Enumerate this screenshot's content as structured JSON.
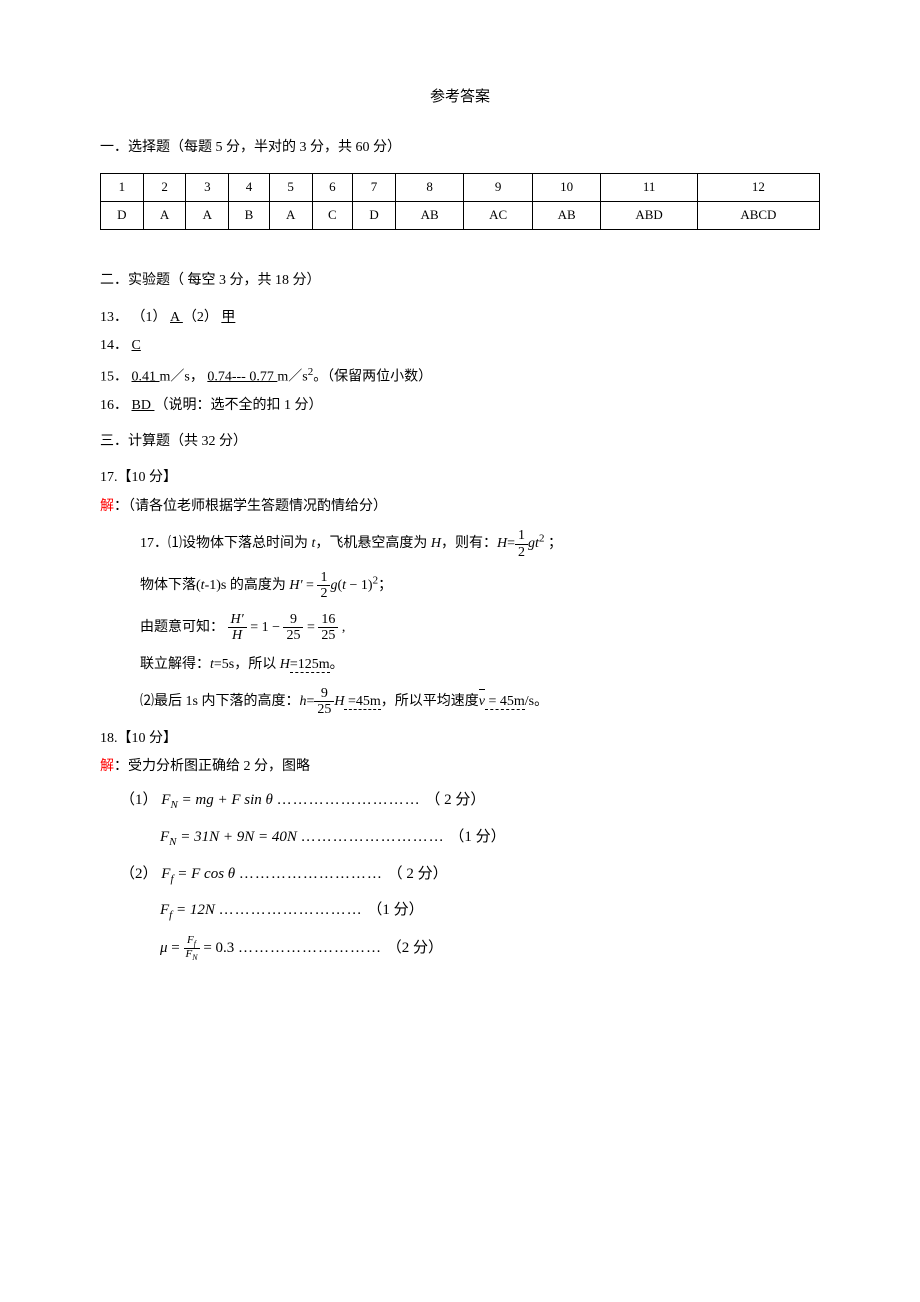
{
  "title": "参考答案",
  "section1": {
    "heading": "一．选择题（每题 5 分，半对的 3 分，共 60 分）",
    "table": {
      "numbers": [
        "1",
        "2",
        "3",
        "4",
        "5",
        "6",
        "7",
        "8",
        "9",
        "10",
        "11",
        "12"
      ],
      "answers": [
        "D",
        "A",
        "A",
        "B",
        "A",
        "C",
        "D",
        "AB",
        "AC",
        "AB",
        "ABD",
        "ABCD"
      ]
    }
  },
  "section2": {
    "heading": "二．实验题（ 每空 3 分，共 18 分）",
    "q13": {
      "label": "13．",
      "part1_label": "（1）",
      "part1_answer": "  A  ",
      "part2_label": "（2）",
      "part2_answer": "    甲  "
    },
    "q14": {
      "label": "14．",
      "answer": "  C  "
    },
    "q15": {
      "label": "15．",
      "answer1": " 0.41 ",
      "unit1": " m／s，",
      "answer2": " 0.74--- 0.77  ",
      "unit2": " m／s",
      "suffix": "。（保留两位小数）"
    },
    "q16": {
      "label": "16．",
      "answer": "  BD   ",
      "note": "（说明：选不全的扣 1 分）"
    }
  },
  "section3": {
    "heading": "三．计算题（共 32 分）",
    "q17": {
      "label": "17.【10 分】",
      "solution_prefix": "解",
      "solution_note": "：（请各位老师根据学生答题情况酌情给分）",
      "line1_prefix": "17．⑴设物体下落总时间为 ",
      "line1_mid": "，飞机悬空高度为 ",
      "line1_after": "，则有：",
      "line2_prefix": "物体下落(",
      "line2_mid": "-1)s 的高度为 ",
      "line3_prefix": "由题意可知：",
      "line4": "联立解得：",
      "line4_t": "t",
      "line4_tval": "=5s，所以 ",
      "line4_H": "H",
      "line4_Hval": "=125m",
      "line4_end": "。",
      "line5_prefix": "⑵最后 1s 内下落的高度：",
      "line5_h": "h",
      "line5_mid": " =45m",
      "line5_after": "，所以平均速度",
      "line5_v": " = 45m",
      "line5_end": "/s。"
    },
    "q18": {
      "label": "18.【10 分】",
      "solution_prefix": "解",
      "solution_line": "：受力分析图正确给 2 分，图略",
      "part1_label": "（1）",
      "eq1_lhs": "F",
      "eq1_sub": "N",
      "eq1_rhs": " = mg + F sin θ",
      "eq1_pts": "（ 2 分）",
      "eq2_rhs": " = 31N + 9N = 40N",
      "eq2_pts": "（1 分）",
      "part2_label": "（2）",
      "eq3_lhs": "F",
      "eq3_sub": "f",
      "eq3_rhs": " = F cos θ",
      "eq3_pts": "（ 2 分）",
      "eq4_rhs": " = 12N",
      "eq4_pts": "（1 分）",
      "eq5_lhs": "μ",
      "eq5_rhs": " = 0.3",
      "eq5_pts": "（2 分）"
    }
  },
  "colors": {
    "text": "#000000",
    "red": "#ff0000",
    "background": "#ffffff",
    "border": "#000000"
  }
}
